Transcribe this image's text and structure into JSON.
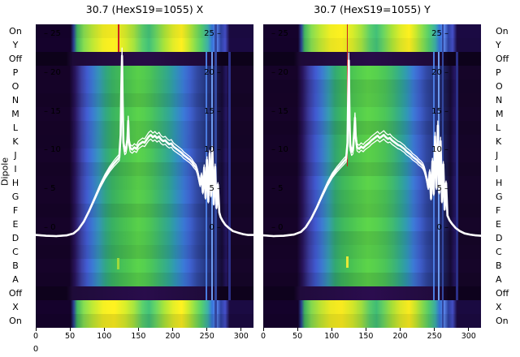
{
  "figure": {
    "y_axis_label": "Dipole",
    "stray_zero_label": "0"
  },
  "rows": [
    {
      "label": "On",
      "kind": "bright"
    },
    {
      "label": "Y",
      "kind": "bright"
    },
    {
      "label": "Off",
      "kind": "off"
    },
    {
      "label": "P",
      "kind": "body"
    },
    {
      "label": "O",
      "kind": "body"
    },
    {
      "label": "N",
      "kind": "body"
    },
    {
      "label": "M",
      "kind": "body"
    },
    {
      "label": "L",
      "kind": "body"
    },
    {
      "label": "K",
      "kind": "body"
    },
    {
      "label": "J",
      "kind": "body"
    },
    {
      "label": "I",
      "kind": "body"
    },
    {
      "label": "H",
      "kind": "body"
    },
    {
      "label": "G",
      "kind": "body"
    },
    {
      "label": "F",
      "kind": "body"
    },
    {
      "label": "E",
      "kind": "body"
    },
    {
      "label": "D",
      "kind": "body"
    },
    {
      "label": "C",
      "kind": "body"
    },
    {
      "label": "B",
      "kind": "body"
    },
    {
      "label": "A",
      "kind": "body"
    },
    {
      "label": "Off",
      "kind": "off"
    },
    {
      "label": "X",
      "kind": "bright"
    },
    {
      "label": "On",
      "kind": "bright"
    }
  ],
  "palette": {
    "bright": [
      [
        0,
        "#14022a"
      ],
      [
        16,
        "#14022a"
      ],
      [
        17.5,
        "#2a3f8f"
      ],
      [
        19,
        "#3fae5c"
      ],
      [
        22,
        "#7fd34e"
      ],
      [
        26,
        "#b5de33"
      ],
      [
        31,
        "#e8e421"
      ],
      [
        36,
        "#f4e61e"
      ],
      [
        41,
        "#cfe228"
      ],
      [
        45,
        "#9fd93c"
      ],
      [
        49,
        "#56c667"
      ],
      [
        52,
        "#3fb873"
      ],
      [
        55,
        "#63cb5f"
      ],
      [
        59,
        "#a2da37"
      ],
      [
        63,
        "#d8e226"
      ],
      [
        67,
        "#f4e61e"
      ],
      [
        70,
        "#c2df2b"
      ],
      [
        73,
        "#86d549"
      ],
      [
        76,
        "#52c667"
      ],
      [
        79,
        "#3aa8a0"
      ],
      [
        81,
        "#3470d0"
      ],
      [
        83,
        "#5a85e8"
      ],
      [
        85,
        "#2c3f9c"
      ],
      [
        87,
        "#424cc0"
      ],
      [
        89,
        "#1a0a40"
      ],
      [
        100,
        "#1a0a40"
      ]
    ],
    "off": [
      [
        0,
        "#0e021c"
      ],
      [
        14,
        "#0e021c"
      ],
      [
        17,
        "#1f0b3a"
      ],
      [
        50,
        "#2a0d4c"
      ],
      [
        80,
        "#1f0b3a"
      ],
      [
        85,
        "#0e021c"
      ],
      [
        100,
        "#0e021c"
      ]
    ],
    "bodyX": [
      [
        0,
        "#150327"
      ],
      [
        15.5,
        "#150327"
      ],
      [
        18,
        "#271458"
      ],
      [
        21,
        "#3a3f9e"
      ],
      [
        23.5,
        "#3e58c8"
      ],
      [
        26,
        "#3973c8"
      ],
      [
        29,
        "#338fb0"
      ],
      [
        32,
        "#2f9e7e"
      ],
      [
        35,
        "#36a95f"
      ],
      [
        39,
        "#41b452"
      ],
      [
        43,
        "#4bbe4b"
      ],
      [
        47,
        "#55c847"
      ],
      [
        50,
        "#50c44c"
      ],
      [
        53,
        "#47bb55"
      ],
      [
        57,
        "#3aad6e"
      ],
      [
        61,
        "#2f9f8c"
      ],
      [
        64,
        "#2e8fae"
      ],
      [
        68,
        "#3873cc"
      ],
      [
        71,
        "#3b5cc4"
      ],
      [
        74,
        "#30479e"
      ],
      [
        77,
        "#273a86"
      ],
      [
        80,
        "#222c6e"
      ],
      [
        83,
        "#1b1a4e"
      ],
      [
        85.5,
        "#150a34"
      ],
      [
        87.5,
        "#241660"
      ],
      [
        89,
        "#150527"
      ],
      [
        100,
        "#150527"
      ]
    ],
    "bodyY": [
      [
        0,
        "#150327"
      ],
      [
        15.5,
        "#150327"
      ],
      [
        18,
        "#261356"
      ],
      [
        21,
        "#393998"
      ],
      [
        24,
        "#3d55c6"
      ],
      [
        27,
        "#3a74c6"
      ],
      [
        30,
        "#3393a8"
      ],
      [
        33,
        "#30a06e"
      ],
      [
        36,
        "#3aad5a"
      ],
      [
        40,
        "#45b84f"
      ],
      [
        44,
        "#4fc24a"
      ],
      [
        48,
        "#58ca46"
      ],
      [
        52,
        "#52c54a"
      ],
      [
        56,
        "#48bc54"
      ],
      [
        60,
        "#3bae6e"
      ],
      [
        63,
        "#30a08a"
      ],
      [
        66,
        "#2e90ac"
      ],
      [
        69,
        "#3a74cc"
      ],
      [
        72,
        "#3b5ac2"
      ],
      [
        75,
        "#2f459c"
      ],
      [
        78,
        "#263884"
      ],
      [
        81,
        "#212a6c"
      ],
      [
        84,
        "#1a184c"
      ],
      [
        86,
        "#150a34"
      ],
      [
        88,
        "#231560"
      ],
      [
        90,
        "#150527"
      ],
      [
        100,
        "#150527"
      ]
    ]
  },
  "chart_data": [
    {
      "type": "heatmap",
      "panel": "X",
      "title": "30.7 (HexS19=1055) X",
      "x_ticks": [
        0,
        50,
        100,
        150,
        200,
        250,
        300
      ],
      "y_ticks": [
        25,
        20,
        15,
        10,
        5,
        0
      ],
      "x_range": [
        0,
        318
      ],
      "y_range": [
        0,
        25
      ],
      "row_axis": "Dipole",
      "body_gradient": "bodyX",
      "curve": {
        "name": "overlay-signal",
        "color": "#ffffff",
        "points": [
          [
            0,
            -0.9
          ],
          [
            15,
            -1
          ],
          [
            30,
            -1.05
          ],
          [
            45,
            -0.95
          ],
          [
            55,
            -0.7
          ],
          [
            62,
            -0.2
          ],
          [
            70,
            0.8
          ],
          [
            78,
            2.2
          ],
          [
            86,
            3.8
          ],
          [
            94,
            5.4
          ],
          [
            101,
            6.6
          ],
          [
            108,
            7.6
          ],
          [
            114,
            8.3
          ],
          [
            119,
            8.8
          ],
          [
            122,
            9.1
          ],
          [
            124,
            12
          ],
          [
            125,
            18
          ],
          [
            126,
            22.2
          ],
          [
            127,
            16
          ],
          [
            128,
            11
          ],
          [
            130,
            9.9
          ],
          [
            132,
            10.1
          ],
          [
            134,
            11.5
          ],
          [
            135,
            13.8
          ],
          [
            136,
            11.2
          ],
          [
            138,
            10.3
          ],
          [
            141,
            10.1
          ],
          [
            144,
            10.4
          ],
          [
            147,
            10.2
          ],
          [
            150,
            10.7
          ],
          [
            153,
            10.9
          ],
          [
            156,
            11.1
          ],
          [
            159,
            11.0
          ],
          [
            162,
            11.4
          ],
          [
            165,
            11.8
          ],
          [
            168,
            12.0
          ],
          [
            171,
            11.7
          ],
          [
            174,
            11.9
          ],
          [
            177,
            11.6
          ],
          [
            180,
            11.8
          ],
          [
            183,
            11.4
          ],
          [
            186,
            11.2
          ],
          [
            189,
            11.3
          ],
          [
            192,
            11.0
          ],
          [
            195,
            10.8
          ],
          [
            198,
            10.9
          ],
          [
            201,
            10.5
          ],
          [
            204,
            10.3
          ],
          [
            207,
            10.1
          ],
          [
            210,
            9.9
          ],
          [
            213,
            9.7
          ],
          [
            216,
            9.4
          ],
          [
            219,
            9.2
          ],
          [
            222,
            9.0
          ],
          [
            225,
            8.8
          ],
          [
            228,
            8.5
          ],
          [
            231,
            8.1
          ],
          [
            234,
            7.8
          ],
          [
            236,
            7.3
          ],
          [
            238,
            6.5
          ],
          [
            240,
            5.6
          ],
          [
            242,
            6.8
          ],
          [
            244,
            4.6
          ],
          [
            246,
            7.8
          ],
          [
            248,
            3.9
          ],
          [
            250,
            8.8
          ],
          [
            252,
            3.4
          ],
          [
            254,
            9.6
          ],
          [
            256,
            4.2
          ],
          [
            258,
            10.1
          ],
          [
            260,
            3.1
          ],
          [
            262,
            7.9
          ],
          [
            264,
            2.6
          ],
          [
            266,
            5.6
          ],
          [
            268,
            2.0
          ],
          [
            270,
            1.4
          ],
          [
            273,
            0.9
          ],
          [
            277,
            0.4
          ],
          [
            282,
            0.0
          ],
          [
            288,
            -0.4
          ],
          [
            295,
            -0.6
          ],
          [
            303,
            -0.8
          ],
          [
            310,
            -0.9
          ],
          [
            318,
            -0.9
          ]
        ]
      },
      "marks": [
        {
          "name": "red-line",
          "x": 121,
          "y1": 0,
          "y2": 34,
          "w": 1.5,
          "color": "#cf2020"
        },
        {
          "name": "blue-stripe",
          "x": 249,
          "y1": 34,
          "y2": 340,
          "w": 2.5,
          "color": "#4a7be0"
        },
        {
          "name": "blue-stripe",
          "x": 257,
          "y1": 34,
          "y2": 340,
          "w": 2,
          "color": "#6e9cf0"
        },
        {
          "name": "blue-stripe",
          "x": 263,
          "y1": 0,
          "y2": 374,
          "w": 2.5,
          "color": "#32479f"
        },
        {
          "name": "blue-stripe",
          "x": 283,
          "y1": 34,
          "y2": 340,
          "w": 3,
          "color": "#2b2f86"
        },
        {
          "name": "green-blip",
          "x": 120,
          "y1": 288,
          "y2": 302,
          "w": 3,
          "color": "#9fd93c"
        }
      ]
    },
    {
      "type": "heatmap",
      "panel": "Y",
      "title": "30.7 (HexS19=1055) Y",
      "x_ticks": [
        0,
        50,
        100,
        150,
        200,
        250,
        300
      ],
      "y_ticks": [
        25,
        20,
        15,
        10,
        5,
        0
      ],
      "x_range": [
        0,
        318
      ],
      "y_range": [
        0,
        25
      ],
      "row_axis": "Dipole",
      "body_gradient": "bodyY",
      "curve": {
        "name": "overlay-signal",
        "color": "#ffffff",
        "points": [
          [
            0,
            -0.95
          ],
          [
            15,
            -1.05
          ],
          [
            30,
            -1.0
          ],
          [
            45,
            -0.85
          ],
          [
            55,
            -0.5
          ],
          [
            62,
            0.1
          ],
          [
            70,
            1.2
          ],
          [
            78,
            2.6
          ],
          [
            86,
            4.2
          ],
          [
            94,
            5.7
          ],
          [
            101,
            6.8
          ],
          [
            107,
            7.5
          ],
          [
            113,
            8.1
          ],
          [
            118,
            8.6
          ],
          [
            121,
            8.9
          ],
          [
            123,
            11
          ],
          [
            124,
            17
          ],
          [
            125,
            21.6
          ],
          [
            126,
            14
          ],
          [
            127,
            10.5
          ],
          [
            129,
            9.8
          ],
          [
            131,
            10.0
          ],
          [
            133,
            12.5
          ],
          [
            134,
            14.2
          ],
          [
            135,
            11.8
          ],
          [
            137,
            10.4
          ],
          [
            140,
            10.2
          ],
          [
            143,
            10.5
          ],
          [
            146,
            10.3
          ],
          [
            149,
            10.6
          ],
          [
            152,
            10.8
          ],
          [
            155,
            11.0
          ],
          [
            158,
            11.3
          ],
          [
            161,
            11.5
          ],
          [
            164,
            11.7
          ],
          [
            167,
            11.9
          ],
          [
            170,
            11.6
          ],
          [
            173,
            11.8
          ],
          [
            176,
            12.0
          ],
          [
            179,
            11.7
          ],
          [
            182,
            11.5
          ],
          [
            185,
            11.6
          ],
          [
            188,
            11.3
          ],
          [
            191,
            11.1
          ],
          [
            194,
            10.9
          ],
          [
            197,
            10.7
          ],
          [
            200,
            10.6
          ],
          [
            203,
            10.4
          ],
          [
            206,
            10.2
          ],
          [
            209,
            9.9
          ],
          [
            212,
            9.7
          ],
          [
            215,
            9.5
          ],
          [
            218,
            9.2
          ],
          [
            221,
            9.0
          ],
          [
            224,
            8.8
          ],
          [
            227,
            8.5
          ],
          [
            230,
            8.3
          ],
          [
            233,
            8.0
          ],
          [
            235,
            7.6
          ],
          [
            237,
            7.0
          ],
          [
            239,
            6.2
          ],
          [
            241,
            5.2
          ],
          [
            243,
            7.2
          ],
          [
            245,
            3.8
          ],
          [
            247,
            8.6
          ],
          [
            249,
            4.4
          ],
          [
            251,
            11.8
          ],
          [
            253,
            5.2
          ],
          [
            255,
            13.2
          ],
          [
            257,
            4.6
          ],
          [
            259,
            11.2
          ],
          [
            261,
            3.4
          ],
          [
            263,
            8.2
          ],
          [
            265,
            2.4
          ],
          [
            267,
            5.8
          ],
          [
            269,
            1.6
          ],
          [
            272,
            1.0
          ],
          [
            276,
            0.5
          ],
          [
            281,
            0.0
          ],
          [
            287,
            -0.4
          ],
          [
            294,
            -0.7
          ],
          [
            302,
            -0.85
          ],
          [
            310,
            -0.95
          ],
          [
            318,
            -1.0
          ]
        ]
      },
      "marks": [
        {
          "name": "red-line",
          "x": 123,
          "y1": 0,
          "y2": 175,
          "w": 1.2,
          "color": "#cf2020"
        },
        {
          "name": "yellow-blip",
          "x": 123,
          "y1": 286,
          "y2": 300,
          "w": 3,
          "color": "#e8e838"
        },
        {
          "name": "blue-stripe",
          "x": 249,
          "y1": 34,
          "y2": 340,
          "w": 2.5,
          "color": "#4a7be0"
        },
        {
          "name": "blue-stripe",
          "x": 256,
          "y1": 34,
          "y2": 340,
          "w": 2,
          "color": "#6e9cf0"
        },
        {
          "name": "blue-stripe",
          "x": 262,
          "y1": 0,
          "y2": 374,
          "w": 2.5,
          "color": "#32479f"
        },
        {
          "name": "blue-stripe",
          "x": 283,
          "y1": 34,
          "y2": 340,
          "w": 3,
          "color": "#2b2f86"
        }
      ]
    }
  ]
}
